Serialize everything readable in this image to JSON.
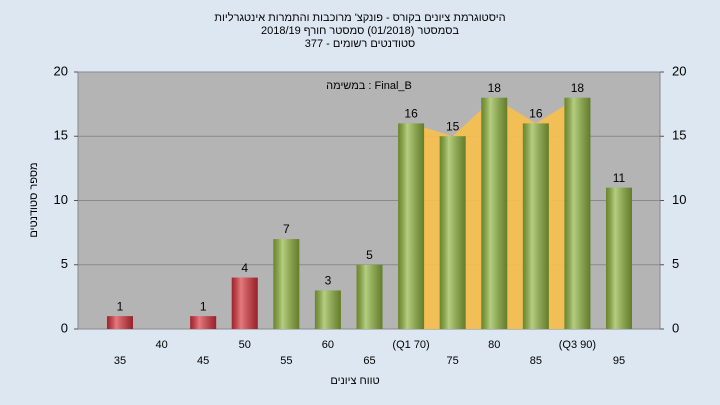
{
  "chart_data": {
    "type": "bar",
    "title": [
      "היסטוגרמת ציונים בקורס - פונקצ' מרוכבות והתמרות אינטגרליות",
      "בסמסטר (01/2018)  סמסטר חורף 2018/19",
      "סטודנטים רשומים - 377"
    ],
    "annotation": "Final_B : במשימה",
    "x_label": "טווח ציונים",
    "y_label": "מספר סטודנטים",
    "categories": [
      "35",
      "40",
      "45",
      "50",
      "55",
      "60",
      "65",
      "(Q1 70)",
      "75",
      "80",
      "85",
      "(Q3 90)",
      "95"
    ],
    "values": [
      1,
      null,
      1,
      4,
      7,
      3,
      5,
      16,
      15,
      18,
      16,
      18,
      11
    ],
    "colors": [
      "#d8303a",
      "#d8303a",
      "#d8303a",
      "#d8303a",
      "#8db33c",
      "#8db33c",
      "#8db33c",
      "#8db33c",
      "#8db33c",
      "#8db33c",
      "#8db33c",
      "#8db33c",
      "#8db33c"
    ],
    "ylim": [
      0,
      20
    ],
    "yticks": [
      0,
      5,
      10,
      15,
      20
    ],
    "y2lim": [
      0,
      20
    ],
    "y2ticks": [
      0,
      5,
      10,
      15,
      20
    ],
    "grid": true
  }
}
